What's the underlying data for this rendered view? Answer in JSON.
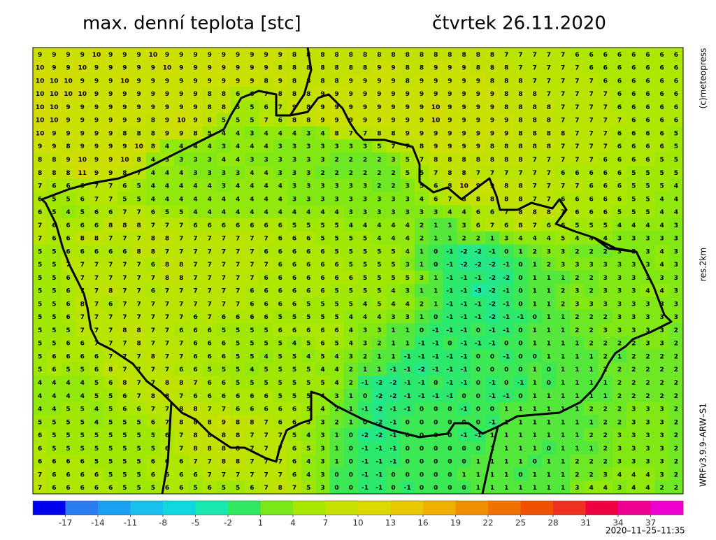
{
  "header": {
    "title": "max. denní teplota [stc]",
    "date": "čtvrtek 26.11.2020"
  },
  "side": {
    "copyright": "(c)meteopress",
    "resolution": "res.2km",
    "model": "WRFv3.9.9–ARW–S1"
  },
  "footer": {
    "timestamp": "2020–11–25–11:35"
  },
  "grid": {
    "rows": [
      [
        9,
        9,
        9,
        9,
        10,
        9,
        9,
        9,
        10,
        9,
        9,
        9,
        9,
        9,
        9,
        9,
        9,
        9,
        8,
        8,
        8,
        8,
        8,
        8,
        8,
        8,
        8,
        8,
        8,
        8,
        8,
        8,
        8,
        7,
        7,
        7,
        7,
        7,
        6,
        6,
        6,
        6,
        6,
        6,
        6,
        6
      ],
      [
        10,
        9,
        9,
        10,
        9,
        9,
        9,
        9,
        9,
        10,
        9,
        9,
        9,
        9,
        9,
        9,
        9,
        8,
        8,
        8,
        8,
        8,
        8,
        8,
        9,
        9,
        8,
        8,
        9,
        9,
        9,
        8,
        8,
        8,
        7,
        7,
        7,
        7,
        7,
        6,
        6,
        6,
        6,
        6,
        6,
        6
      ],
      [
        10,
        10,
        10,
        9,
        9,
        9,
        10,
        9,
        9,
        9,
        9,
        9,
        9,
        9,
        9,
        9,
        8,
        9,
        8,
        8,
        8,
        8,
        9,
        9,
        9,
        9,
        8,
        9,
        9,
        9,
        9,
        9,
        8,
        8,
        8,
        7,
        7,
        7,
        7,
        7,
        6,
        6,
        6,
        6,
        6,
        6
      ],
      [
        10,
        10,
        10,
        10,
        9,
        9,
        9,
        9,
        9,
        9,
        9,
        9,
        8,
        8,
        6,
        6,
        7,
        8,
        8,
        8,
        9,
        9,
        9,
        9,
        9,
        9,
        9,
        9,
        9,
        9,
        9,
        9,
        9,
        8,
        8,
        8,
        7,
        7,
        7,
        7,
        7,
        6,
        6,
        6,
        6,
        6
      ],
      [
        10,
        10,
        9,
        9,
        9,
        9,
        9,
        9,
        9,
        9,
        9,
        9,
        8,
        8,
        5,
        5,
        6,
        7,
        9,
        8,
        9,
        9,
        9,
        9,
        9,
        9,
        9,
        9,
        10,
        9,
        9,
        9,
        9,
        8,
        8,
        8,
        8,
        7,
        7,
        7,
        7,
        6,
        6,
        6,
        6,
        6
      ],
      [
        10,
        10,
        9,
        9,
        9,
        9,
        9,
        9,
        8,
        9,
        10,
        9,
        8,
        5,
        5,
        5,
        7,
        6,
        8,
        8,
        9,
        9,
        9,
        9,
        9,
        9,
        9,
        9,
        10,
        9,
        9,
        9,
        9,
        9,
        8,
        8,
        8,
        7,
        7,
        7,
        7,
        7,
        6,
        6,
        6,
        6
      ],
      [
        10,
        9,
        9,
        9,
        9,
        9,
        8,
        8,
        8,
        9,
        9,
        8,
        5,
        4,
        4,
        3,
        4,
        4,
        4,
        3,
        4,
        8,
        7,
        7,
        8,
        8,
        9,
        9,
        9,
        9,
        9,
        9,
        9,
        9,
        8,
        8,
        8,
        8,
        7,
        7,
        7,
        6,
        6,
        6,
        6,
        5
      ],
      [
        9,
        9,
        8,
        9,
        9,
        9,
        9,
        10,
        8,
        4,
        4,
        4,
        4,
        3,
        4,
        4,
        4,
        3,
        3,
        3,
        3,
        3,
        3,
        3,
        5,
        7,
        7,
        8,
        9,
        9,
        9,
        9,
        8,
        8,
        8,
        8,
        8,
        7,
        7,
        7,
        7,
        6,
        6,
        6,
        6,
        5
      ],
      [
        8,
        8,
        9,
        10,
        9,
        9,
        10,
        8,
        4,
        5,
        3,
        3,
        3,
        4,
        4,
        3,
        3,
        3,
        3,
        3,
        3,
        2,
        2,
        2,
        2,
        3,
        5,
        7,
        8,
        8,
        8,
        8,
        8,
        8,
        8,
        7,
        7,
        7,
        7,
        7,
        6,
        6,
        6,
        6,
        5,
        5
      ],
      [
        8,
        8,
        8,
        11,
        9,
        9,
        8,
        7,
        4,
        4,
        4,
        3,
        3,
        3,
        3,
        4,
        4,
        3,
        3,
        3,
        2,
        2,
        2,
        2,
        2,
        2,
        5,
        5,
        7,
        8,
        8,
        7,
        7,
        7,
        7,
        7,
        7,
        6,
        6,
        6,
        6,
        6,
        5,
        5,
        5,
        5
      ],
      [
        7,
        6,
        6,
        6,
        7,
        7,
        6,
        5,
        4,
        4,
        4,
        4,
        4,
        3,
        4,
        4,
        4,
        4,
        3,
        3,
        3,
        3,
        3,
        3,
        2,
        2,
        3,
        5,
        6,
        8,
        10,
        9,
        9,
        8,
        8,
        7,
        7,
        7,
        7,
        6,
        6,
        6,
        5,
        5,
        5,
        4
      ],
      [
        6,
        5,
        5,
        6,
        7,
        7,
        5,
        5,
        4,
        4,
        4,
        4,
        4,
        4,
        4,
        4,
        4,
        4,
        3,
        3,
        3,
        3,
        3,
        3,
        3,
        3,
        3,
        4,
        6,
        7,
        8,
        8,
        8,
        8,
        8,
        7,
        7,
        6,
        6,
        6,
        6,
        6,
        5,
        5,
        4,
        4
      ],
      [
        6,
        5,
        4,
        5,
        6,
        6,
        7,
        7,
        6,
        5,
        5,
        4,
        4,
        4,
        4,
        4,
        4,
        4,
        4,
        4,
        4,
        4,
        3,
        3,
        3,
        3,
        3,
        3,
        3,
        4,
        4,
        6,
        6,
        7,
        8,
        8,
        8,
        7,
        6,
        6,
        6,
        5,
        5,
        5,
        4,
        4
      ],
      [
        7,
        6,
        6,
        6,
        6,
        8,
        8,
        8,
        7,
        7,
        7,
        6,
        6,
        6,
        6,
        6,
        6,
        6,
        5,
        5,
        5,
        5,
        4,
        4,
        4,
        4,
        4,
        2,
        1,
        1,
        3,
        6,
        7,
        6,
        8,
        7,
        6,
        6,
        5,
        5,
        5,
        4,
        4,
        4,
        4,
        3
      ],
      [
        7,
        6,
        6,
        8,
        8,
        7,
        7,
        7,
        8,
        8,
        7,
        7,
        7,
        7,
        7,
        7,
        7,
        6,
        6,
        6,
        5,
        5,
        5,
        5,
        4,
        4,
        4,
        2,
        1,
        1,
        2,
        2,
        1,
        3,
        4,
        4,
        4,
        5,
        4,
        4,
        4,
        3,
        3,
        3,
        3,
        3
      ],
      [
        5,
        5,
        6,
        6,
        6,
        6,
        6,
        8,
        8,
        7,
        7,
        7,
        7,
        7,
        7,
        7,
        6,
        6,
        6,
        6,
        6,
        5,
        5,
        5,
        5,
        5,
        4,
        1,
        0,
        -1,
        -2,
        -2,
        -1,
        0,
        1,
        2,
        3,
        3,
        2,
        2,
        2,
        3,
        3,
        3,
        4,
        3
      ],
      [
        5,
        5,
        7,
        7,
        7,
        7,
        7,
        7,
        6,
        8,
        8,
        7,
        7,
        7,
        7,
        7,
        7,
        6,
        6,
        6,
        6,
        6,
        5,
        5,
        5,
        5,
        3,
        1,
        0,
        -1,
        -2,
        -2,
        -2,
        -1,
        0,
        1,
        2,
        3,
        3,
        3,
        3,
        3,
        3,
        3,
        4,
        3
      ],
      [
        5,
        5,
        6,
        7,
        7,
        7,
        7,
        7,
        7,
        8,
        8,
        7,
        7,
        7,
        7,
        7,
        6,
        6,
        6,
        6,
        6,
        6,
        6,
        5,
        5,
        5,
        5,
        3,
        1,
        -1,
        -1,
        -1,
        -2,
        -2,
        0,
        1,
        1,
        1,
        2,
        2,
        3,
        3,
        3,
        3,
        3,
        3
      ],
      [
        5,
        5,
        6,
        7,
        7,
        8,
        7,
        7,
        6,
        7,
        7,
        7,
        7,
        7,
        7,
        6,
        6,
        6,
        6,
        6,
        6,
        5,
        5,
        5,
        5,
        4,
        3,
        1,
        1,
        -1,
        -1,
        -3,
        -2,
        -1,
        0,
        1,
        1,
        2,
        3,
        2,
        3,
        3,
        3,
        4,
        4,
        3
      ],
      [
        5,
        5,
        6,
        8,
        7,
        6,
        7,
        7,
        7,
        7,
        7,
        7,
        7,
        7,
        7,
        6,
        6,
        6,
        6,
        5,
        5,
        5,
        5,
        4,
        5,
        4,
        4,
        2,
        1,
        -1,
        -1,
        -1,
        -2,
        -1,
        0,
        1,
        1,
        2,
        3,
        3,
        3,
        3,
        3,
        3,
        3,
        3
      ],
      [
        5,
        5,
        6,
        7,
        7,
        7,
        7,
        7,
        7,
        7,
        7,
        6,
        7,
        6,
        6,
        6,
        6,
        5,
        5,
        5,
        5,
        5,
        4,
        4,
        4,
        3,
        3,
        1,
        0,
        -1,
        -1,
        -1,
        -2,
        -1,
        -1,
        0,
        1,
        1,
        2,
        2,
        2,
        3,
        3,
        3,
        3,
        3
      ],
      [
        5,
        5,
        5,
        7,
        7,
        7,
        8,
        8,
        7,
        7,
        6,
        6,
        6,
        5,
        5,
        5,
        5,
        6,
        6,
        6,
        6,
        6,
        4,
        3,
        3,
        1,
        1,
        0,
        -1,
        -1,
        -1,
        0,
        -1,
        -1,
        0,
        1,
        1,
        1,
        2,
        2,
        3,
        3,
        3,
        3,
        3,
        2
      ],
      [
        5,
        5,
        6,
        6,
        7,
        7,
        7,
        8,
        7,
        7,
        7,
        6,
        6,
        6,
        5,
        5,
        5,
        5,
        4,
        5,
        6,
        5,
        4,
        3,
        2,
        1,
        1,
        -1,
        -1,
        0,
        -1,
        -1,
        -1,
        0,
        0,
        1,
        1,
        1,
        1,
        2,
        2,
        2,
        2,
        3,
        3,
        2
      ],
      [
        5,
        6,
        6,
        6,
        6,
        7,
        7,
        7,
        8,
        7,
        7,
        6,
        6,
        6,
        5,
        5,
        4,
        5,
        5,
        4,
        5,
        4,
        3,
        2,
        1,
        1,
        -1,
        -1,
        -1,
        -1,
        -1,
        0,
        0,
        -1,
        0,
        0,
        1,
        1,
        1,
        1,
        2,
        1,
        2,
        2,
        2,
        2
      ],
      [
        5,
        6,
        5,
        5,
        6,
        8,
        7,
        7,
        7,
        7,
        6,
        6,
        5,
        5,
        5,
        4,
        5,
        5,
        5,
        5,
        4,
        4,
        2,
        1,
        1,
        -1,
        -1,
        -2,
        -1,
        -1,
        -1,
        0,
        0,
        0,
        0,
        1,
        0,
        1,
        1,
        1,
        2,
        2,
        2,
        2,
        2,
        2
      ],
      [
        4,
        4,
        4,
        4,
        5,
        6,
        8,
        7,
        7,
        8,
        8,
        7,
        6,
        6,
        5,
        5,
        5,
        5,
        5,
        5,
        5,
        4,
        2,
        -1,
        -2,
        -2,
        -1,
        -1,
        0,
        -1,
        -1,
        0,
        -1,
        0,
        -1,
        1,
        0,
        1,
        1,
        1,
        1,
        2,
        2,
        2,
        2,
        2
      ],
      [
        4,
        4,
        4,
        4,
        5,
        5,
        6,
        7,
        8,
        8,
        7,
        6,
        6,
        6,
        6,
        6,
        6,
        5,
        5,
        5,
        4,
        3,
        1,
        0,
        -2,
        -2,
        -1,
        -1,
        -1,
        -1,
        0,
        0,
        -1,
        -1,
        0,
        1,
        1,
        1,
        1,
        1,
        1,
        2,
        2,
        2,
        2,
        2
      ],
      [
        4,
        4,
        5,
        5,
        4,
        5,
        6,
        6,
        7,
        7,
        8,
        8,
        7,
        7,
        6,
        6,
        6,
        6,
        6,
        5,
        4,
        2,
        1,
        -1,
        -2,
        -1,
        -1,
        0,
        0,
        0,
        -1,
        0,
        0,
        1,
        1,
        1,
        1,
        1,
        1,
        2,
        2,
        2,
        3,
        3,
        3,
        2
      ],
      [
        5,
        5,
        5,
        5,
        4,
        5,
        5,
        5,
        6,
        7,
        8,
        8,
        8,
        9,
        8,
        8,
        7,
        6,
        6,
        5,
        3,
        2,
        1,
        0,
        -2,
        -1,
        0,
        0,
        0,
        0,
        0,
        0,
        -1,
        1,
        1,
        1,
        1,
        1,
        1,
        1,
        2,
        2,
        3,
        3,
        3,
        2
      ],
      [
        6,
        5,
        5,
        5,
        5,
        5,
        5,
        5,
        5,
        6,
        7,
        8,
        8,
        8,
        8,
        7,
        7,
        7,
        5,
        4,
        3,
        1,
        0,
        -2,
        -2,
        -1,
        0,
        0,
        0,
        0,
        -1,
        -1,
        1,
        1,
        1,
        1,
        1,
        1,
        1,
        2,
        2,
        3,
        3,
        3,
        3,
        2
      ],
      [
        6,
        5,
        5,
        5,
        5,
        5,
        5,
        5,
        5,
        6,
        7,
        8,
        8,
        8,
        8,
        7,
        7,
        7,
        6,
        5,
        3,
        1,
        0,
        -1,
        -1,
        -1,
        0,
        0,
        0,
        0,
        0,
        0,
        1,
        1,
        1,
        1,
        0,
        1,
        1,
        1,
        2,
        3,
        3,
        3,
        3,
        2
      ],
      [
        6,
        6,
        6,
        6,
        5,
        5,
        5,
        5,
        6,
        6,
        6,
        7,
        7,
        8,
        8,
        7,
        7,
        7,
        6,
        4,
        3,
        1,
        0,
        -1,
        -1,
        -1,
        0,
        0,
        0,
        0,
        0,
        1,
        1,
        1,
        1,
        0,
        1,
        1,
        2,
        2,
        2,
        3,
        3,
        3,
        3,
        2
      ],
      [
        7,
        6,
        6,
        6,
        6,
        5,
        5,
        5,
        6,
        6,
        6,
        6,
        7,
        7,
        7,
        7,
        7,
        7,
        6,
        4,
        3,
        0,
        0,
        -1,
        -1,
        0,
        0,
        0,
        0,
        0,
        1,
        1,
        1,
        1,
        0,
        1,
        1,
        1,
        2,
        2,
        3,
        4,
        4,
        4,
        3,
        2
      ],
      [
        7,
        6,
        6,
        6,
        6,
        6,
        5,
        5,
        5,
        6,
        6,
        5,
        6,
        5,
        5,
        6,
        7,
        8,
        7,
        5,
        3,
        0,
        0,
        -1,
        -1,
        0,
        -1,
        0,
        0,
        0,
        0,
        1,
        1,
        1,
        1,
        1,
        1,
        1,
        3,
        4,
        4,
        3,
        4,
        4,
        2,
        2
      ]
    ]
  },
  "colorbar": {
    "lim": [
      -20,
      40
    ],
    "ticks": [
      -17,
      -14,
      -11,
      -8,
      -5,
      -2,
      1,
      4,
      7,
      10,
      13,
      16,
      19,
      22,
      25,
      28,
      31,
      34,
      37
    ],
    "colors": [
      "#0000ee",
      "#2a7cf0",
      "#1aa0f0",
      "#18c0f0",
      "#10d8e0",
      "#18e8b0",
      "#30e860",
      "#7ae818",
      "#a8e800",
      "#c8e000",
      "#dcd800",
      "#e8c800",
      "#f0b000",
      "#f09000",
      "#f07000",
      "#f05000",
      "#f03020",
      "#f00040",
      "#f00090",
      "#f000d0"
    ]
  }
}
